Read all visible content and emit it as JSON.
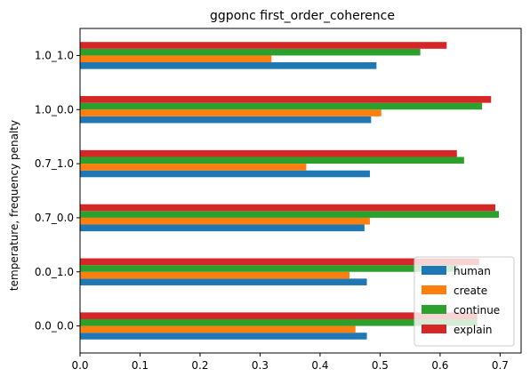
{
  "chart_data": {
    "type": "bar",
    "orientation": "horizontal",
    "title": "ggponc first_order_coherence",
    "xlabel": "",
    "ylabel": "temperature, frequency penalty",
    "xlim": [
      0,
      0.735
    ],
    "xticks": [
      0.0,
      0.1,
      0.2,
      0.3,
      0.4,
      0.5,
      0.6,
      0.7
    ],
    "xtick_labels": [
      "0.0",
      "0.1",
      "0.2",
      "0.3",
      "0.4",
      "0.5",
      "0.6",
      "0.7"
    ],
    "categories": [
      "0.0_0.0",
      "0.0_1.0",
      "0.7_0.0",
      "0.7_1.0",
      "1.0_0.0",
      "1.0_1.0"
    ],
    "series": [
      {
        "name": "human",
        "color": "#1f77b4",
        "values": [
          0.478,
          0.478,
          0.474,
          0.483,
          0.485,
          0.494
        ]
      },
      {
        "name": "create",
        "color": "#ff7f0e",
        "values": [
          0.459,
          0.449,
          0.483,
          0.377,
          0.502,
          0.319
        ]
      },
      {
        "name": "continue",
        "color": "#2ca02c",
        "values": [
          0.662,
          0.63,
          0.698,
          0.64,
          0.67,
          0.567
        ]
      },
      {
        "name": "explain",
        "color": "#d62728",
        "values": [
          0.662,
          0.665,
          0.692,
          0.628,
          0.685,
          0.611
        ]
      }
    ],
    "legend": {
      "position": "lower-right"
    },
    "grid": false
  }
}
